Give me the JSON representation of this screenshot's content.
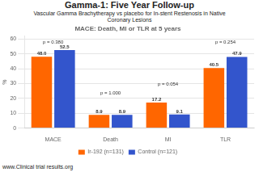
{
  "chart_data": {
    "type": "bar",
    "title": "Gamma-1: Five Year Follow-up",
    "subtitle": "Vascular Gamma Brachytherapy vs placebo for In-stent Restenosis in Native\nCoronary Lesions",
    "chart_title": "MACE: Death, MI or TLR at 5 years",
    "footer": "www.Clinical trial results.org",
    "categories": [
      "MACE",
      "Death",
      "MI",
      "TLR"
    ],
    "series": [
      {
        "name": "Ir-192 (n=131)",
        "color": "#FF6600",
        "values": [
          48.0,
          8.9,
          17.2,
          40.5
        ],
        "value_labels": [
          "48.0",
          "8.9",
          "17.2",
          "40.5"
        ]
      },
      {
        "name": "Control (n=121)",
        "color": "#3355CC",
        "values": [
          52.5,
          8.9,
          9.1,
          47.9
        ],
        "value_labels": [
          "52.5",
          "8.9",
          "9.1",
          "47.9"
        ]
      }
    ],
    "data_labels": true,
    "annotations": [
      {
        "text": "p = 0.380",
        "x": "MACE",
        "y": 56
      },
      {
        "text": "p = 1.000",
        "x": "Death",
        "y": 22
      },
      {
        "text": "p = 0.054",
        "x": "MI",
        "y": 28
      },
      {
        "text": "p = 0.254",
        "x": "TLR",
        "y": 56
      }
    ],
    "ylabel": "%",
    "ylim": [
      0,
      62
    ],
    "yticks": [
      0,
      10,
      20,
      30,
      40,
      50,
      60
    ],
    "grid": true,
    "legend": "bottom"
  }
}
